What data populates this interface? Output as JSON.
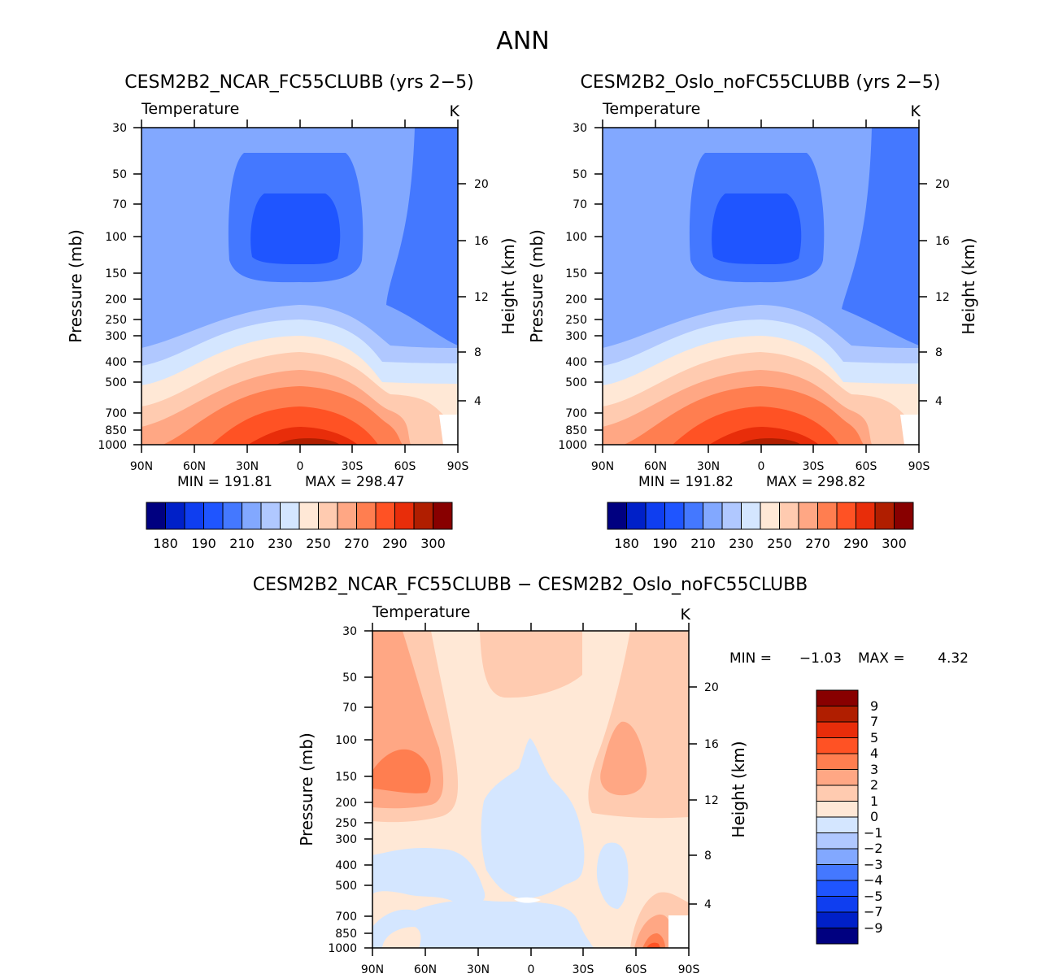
{
  "main_title": "ANN",
  "palette": [
    "#000080",
    "#0020c8",
    "#0f3ef0",
    "#1f55ff",
    "#4478ff",
    "#82a8ff",
    "#b0c8ff",
    "#d4e6ff",
    "#ffe8d6",
    "#ffcbb0",
    "#ffa784",
    "#ff7e50",
    "#ff5224",
    "#e82d0a",
    "#b01e00",
    "#880000"
  ],
  "chart_data": [
    {
      "type": "contour",
      "name": "panel-ncar",
      "title": "CESM2B2_NCAR_FC55CLUBB (yrs 2−5)",
      "variable": "Temperature",
      "units": "K",
      "ylabel": "Pressure (mb)",
      "ylabel_right": "Height (km)",
      "x_ticks": [
        "90N",
        "60N",
        "30N",
        "0",
        "30S",
        "60S",
        "90S"
      ],
      "xlim": [
        90,
        -90
      ],
      "y_ticks": [
        "30",
        "50",
        "70",
        "100",
        "150",
        "200",
        "250",
        "300",
        "400",
        "500",
        "700",
        "850",
        "1000"
      ],
      "ylim": [
        30,
        1000
      ],
      "height_ticks": [
        "20",
        "16",
        "12",
        "8",
        "4"
      ],
      "min_label": "MIN = 191.81",
      "max_label": "MAX = 298.47",
      "min": 191.81,
      "max": 298.47,
      "levels": [
        180,
        185,
        190,
        200,
        210,
        220,
        230,
        240,
        250,
        260,
        270,
        280,
        290,
        295,
        300
      ],
      "colorbar_labels": [
        "180",
        "190",
        "210",
        "230",
        "250",
        "270",
        "290",
        "300"
      ],
      "colorbar_orientation": "horizontal"
    },
    {
      "type": "contour",
      "name": "panel-oslo",
      "title": "CESM2B2_Oslo_noFC55CLUBB (yrs 2−5)",
      "variable": "Temperature",
      "units": "K",
      "ylabel": "Pressure (mb)",
      "ylabel_right": "Height (km)",
      "x_ticks": [
        "90N",
        "60N",
        "30N",
        "0",
        "30S",
        "60S",
        "90S"
      ],
      "xlim": [
        90,
        -90
      ],
      "y_ticks": [
        "30",
        "50",
        "70",
        "100",
        "150",
        "200",
        "250",
        "300",
        "400",
        "500",
        "700",
        "850",
        "1000"
      ],
      "ylim": [
        30,
        1000
      ],
      "height_ticks": [
        "20",
        "16",
        "12",
        "8",
        "4"
      ],
      "min_label": "MIN = 191.82",
      "max_label": "MAX = 298.82",
      "min": 191.82,
      "max": 298.82,
      "levels": [
        180,
        185,
        190,
        200,
        210,
        220,
        230,
        240,
        250,
        260,
        270,
        280,
        290,
        295,
        300
      ],
      "colorbar_labels": [
        "180",
        "190",
        "210",
        "230",
        "250",
        "270",
        "290",
        "300"
      ],
      "colorbar_orientation": "horizontal"
    },
    {
      "type": "contour",
      "name": "panel-diff",
      "title": "CESM2B2_NCAR_FC55CLUBB − CESM2B2_Oslo_noFC55CLUBB",
      "variable": "Temperature",
      "units": "K",
      "ylabel": "Pressure (mb)",
      "ylabel_right": "Height (km)",
      "x_ticks": [
        "90N",
        "60N",
        "30N",
        "0",
        "30S",
        "60S",
        "90S"
      ],
      "xlim": [
        90,
        -90
      ],
      "y_ticks": [
        "30",
        "50",
        "70",
        "100",
        "150",
        "200",
        "250",
        "300",
        "400",
        "500",
        "700",
        "850",
        "1000"
      ],
      "ylim": [
        30,
        1000
      ],
      "height_ticks": [
        "20",
        "16",
        "12",
        "8",
        "4"
      ],
      "min_label": "MIN =",
      "min_value": "−1.03",
      "max_label": "MAX =",
      "max_value": "4.32",
      "min": -1.03,
      "max": 4.32,
      "levels": [
        -9,
        -7,
        -5,
        -4,
        -3,
        -2,
        -1,
        0,
        1,
        2,
        3,
        4,
        5,
        7,
        9
      ],
      "colorbar_labels": [
        "9",
        "7",
        "5",
        "4",
        "3",
        "2",
        "1",
        "0",
        "−1",
        "−2",
        "−3",
        "−4",
        "−5",
        "−7",
        "−9"
      ],
      "colorbar_orientation": "vertical"
    }
  ]
}
